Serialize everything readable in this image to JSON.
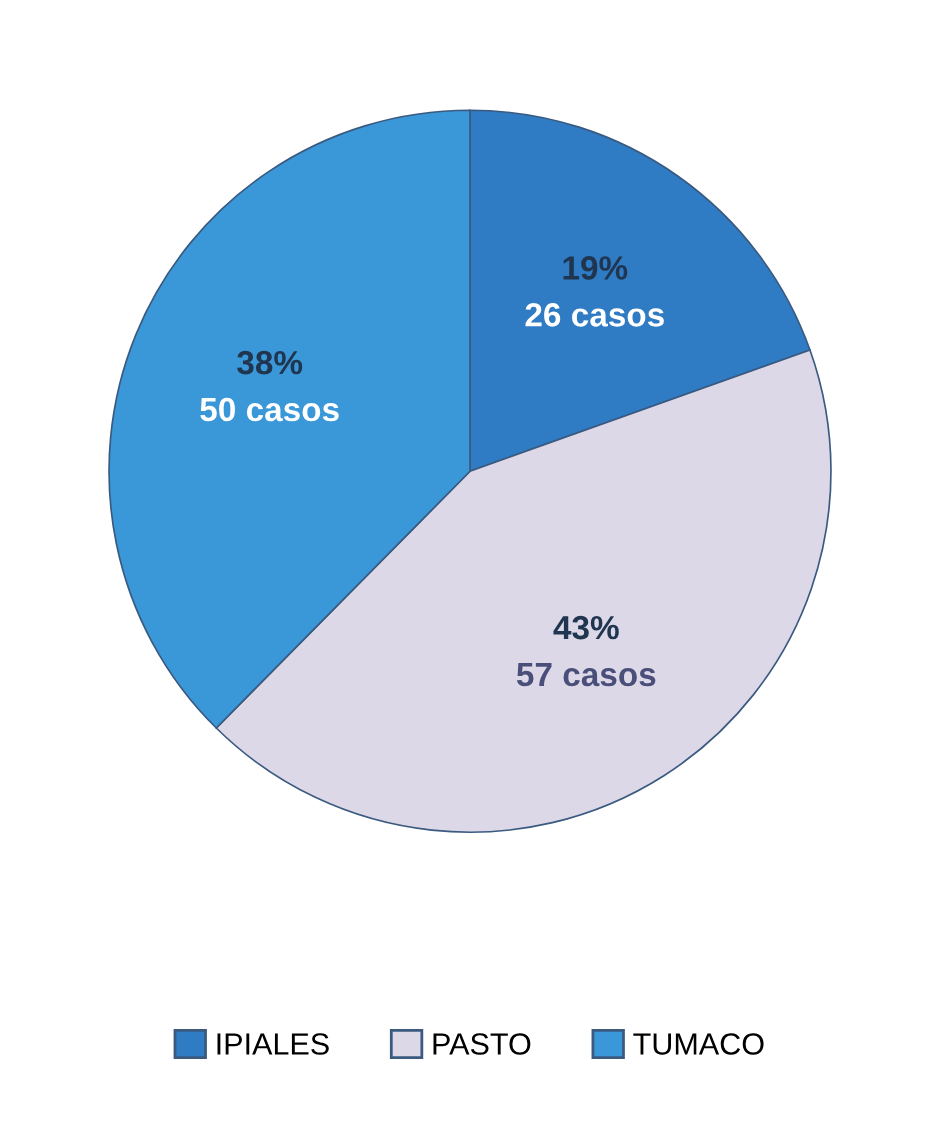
{
  "chart_data": {
    "type": "pie",
    "categories": [
      "IPIALES",
      "PASTO",
      "TUMACO"
    ],
    "values": [
      26,
      57,
      50
    ],
    "colors": [
      "#2f7cc4",
      "#dcd8e8",
      "#3a98d8"
    ],
    "value_labels": [
      "19%\n26 casos",
      "43%\n57 casos",
      "38%\n50 casos"
    ],
    "legend": "bottom"
  }
}
